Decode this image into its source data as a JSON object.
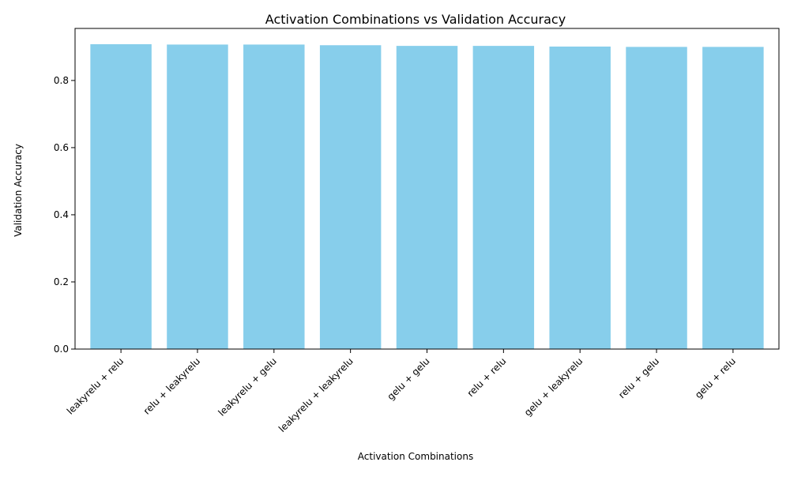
{
  "chart_data": {
    "type": "bar",
    "title": "Activation Combinations vs Validation Accuracy",
    "xlabel": "Activation Combinations",
    "ylabel": "Validation Accuracy",
    "categories": [
      "leakyrelu + relu",
      "relu + leakyrelu",
      "leakyrelu + gelu",
      "leakyrelu + leakyrelu",
      "gelu + gelu",
      "relu + relu",
      "gelu + leakyrelu",
      "relu + gelu",
      "gelu + relu"
    ],
    "values": [
      0.908,
      0.907,
      0.907,
      0.905,
      0.903,
      0.903,
      0.901,
      0.9,
      0.9
    ],
    "ylim": [
      0,
      0.955
    ],
    "yticks": [
      0.0,
      0.2,
      0.4,
      0.6,
      0.8
    ],
    "ytick_labels": [
      "0.0",
      "0.2",
      "0.4",
      "0.6",
      "0.8"
    ],
    "bar_color": "#87CEEB",
    "grid": false,
    "legend": false
  }
}
